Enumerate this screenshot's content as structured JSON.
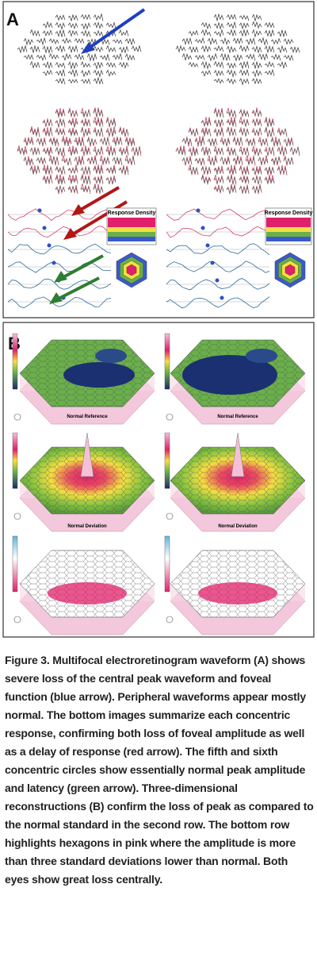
{
  "figure": {
    "panel_a": {
      "label": "A",
      "tables": [
        {
          "title": "Response Density"
        },
        {
          "title": "Response Density"
        }
      ]
    },
    "panel_b": {
      "label": "B",
      "reference_titles": [
        "Normal Reference",
        "Normal Reference"
      ],
      "deviation_titles": [
        "Normal Deviation",
        "Normal Deviation"
      ]
    },
    "caption": "Figure 3. Multifocal electroretinogram waveform (A) shows severe loss of the central peak waveform and foveal function (blue arrow). Peripheral waveforms appear mostly normal. The bottom images summarize each concentric response, confirming both loss of foveal amplitude as well as a delay of response (red arrow). The fifth and sixth concentric circles show essentially normal peak amplitude and latency (green arrow). Three-dimensional reconstructions (B) confirm the loss of peak as compared to the normal standard in the second row. The bottom row highlights hexagons in pink where the amplitude is more than three standard deviations lower than normal. Both eyes show great loss centrally."
  }
}
